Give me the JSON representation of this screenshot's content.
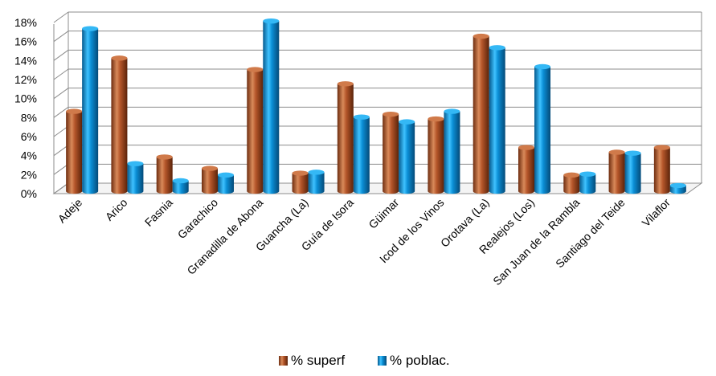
{
  "chart_data": {
    "type": "bar",
    "style": "3d-cylinder",
    "title": "",
    "xlabel": "",
    "ylabel": "",
    "categories": [
      "Adeje",
      "Arico",
      "Fasnia",
      "Garachico",
      "Granadilla de Abona",
      "Guancha (La)",
      "Guía de Isora",
      "Güimar",
      "Icod de los Vinos",
      "Orotava (La)",
      "Realejos (Los)",
      "San Juan de la Rambla",
      "Santiago del Teide",
      "Vilaflor"
    ],
    "series": [
      {
        "name": "% superf",
        "color": "#b5562a",
        "values": [
          8.4,
          14.0,
          3.6,
          2.4,
          12.8,
          1.9,
          11.3,
          8.1,
          7.6,
          16.3,
          4.6,
          1.7,
          4.1,
          4.6
        ]
      },
      {
        "name": "% poblac.",
        "color": "#0b8fd6",
        "values": [
          17.1,
          2.9,
          1.1,
          1.7,
          17.9,
          2.0,
          7.8,
          7.3,
          8.4,
          15.1,
          13.1,
          1.8,
          4.0,
          0.6
        ]
      }
    ],
    "ylim": [
      0,
      18
    ],
    "yticks": [
      "0%",
      "2%",
      "4%",
      "6%",
      "8%",
      "10%",
      "12%",
      "14%",
      "16%",
      "18%"
    ],
    "grid": true,
    "legend_position": "bottom"
  }
}
